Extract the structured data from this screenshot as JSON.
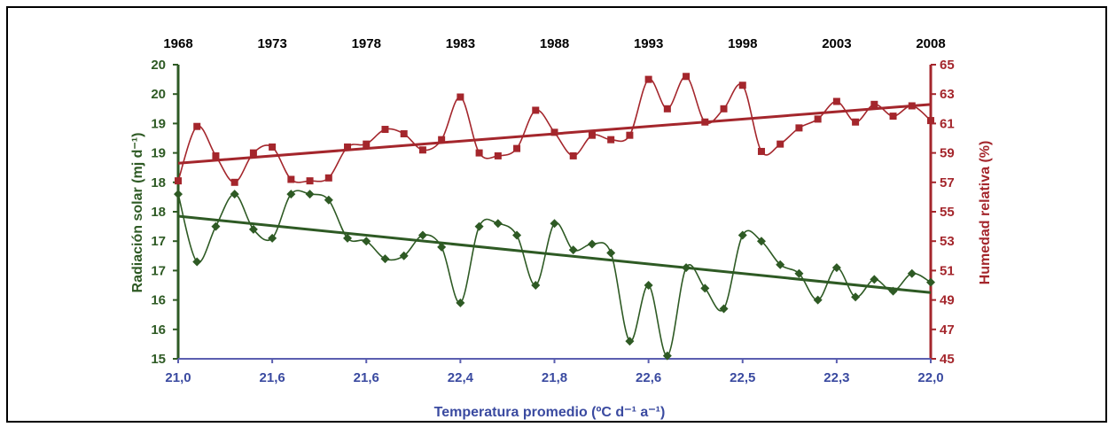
{
  "chart_data": {
    "type": "line",
    "top_x_ticks": [
      "1968",
      "1973",
      "1978",
      "1983",
      "1988",
      "1993",
      "1998",
      "2003",
      "2008"
    ],
    "bottom_x_ticks": [
      "21,0",
      "21,6",
      "21,6",
      "22,4",
      "21,8",
      "22,6",
      "22,5",
      "22,3",
      "22,0"
    ],
    "xlabel": "Temperatura promedio (ºC d⁻¹ a⁻¹)",
    "ylabel_left": "Radiación solar (mj d⁻¹)",
    "ylabel_right": "Humedad relativa (%)",
    "left_ticks": [
      "15",
      "16",
      "16",
      "17",
      "17",
      "18",
      "18",
      "19",
      "19",
      "20",
      "20"
    ],
    "right_ticks": [
      "45",
      "47",
      "49",
      "51",
      "53",
      "55",
      "57",
      "59",
      "61",
      "63",
      "65"
    ],
    "xlim": [
      1968,
      2008
    ],
    "ylim_left_index": [
      0,
      10
    ],
    "ylim_right": [
      45,
      65
    ],
    "series": [
      {
        "axis": "right",
        "color": "#a4262c",
        "marker": "square",
        "x": [
          1968,
          1969,
          1970,
          1971,
          1972,
          1973,
          1974,
          1975,
          1976,
          1977,
          1978,
          1979,
          1980,
          1981,
          1982,
          1983,
          1984,
          1985,
          1986,
          1987,
          1988,
          1989,
          1990,
          1991,
          1992,
          1993,
          1994,
          1995,
          1996,
          1997,
          1998,
          1999,
          2000,
          2001,
          2002,
          2003,
          2004,
          2005,
          2006,
          2007,
          2008
        ],
        "y": [
          57.1,
          60.8,
          58.8,
          57.0,
          59.0,
          59.4,
          57.2,
          57.1,
          57.3,
          59.4,
          59.6,
          60.6,
          60.3,
          59.2,
          59.9,
          62.8,
          59.0,
          58.8,
          59.3,
          61.9,
          60.4,
          58.8,
          60.2,
          59.9,
          60.2,
          64.0,
          62.0,
          64.2,
          61.1,
          62.0,
          63.6,
          59.1,
          59.6,
          60.7,
          61.3,
          62.5,
          61.1,
          62.3,
          61.5,
          62.2,
          61.2
        ],
        "trend": [
          58.3,
          62.3
        ]
      },
      {
        "axis": "left",
        "color": "#2e5a24",
        "marker": "diamond",
        "x": [
          1968,
          1969,
          1970,
          1971,
          1972,
          1973,
          1974,
          1975,
          1976,
          1977,
          1978,
          1979,
          1980,
          1981,
          1982,
          1983,
          1984,
          1985,
          1986,
          1987,
          1988,
          1989,
          1990,
          1991,
          1992,
          1993,
          1994,
          1995,
          1996,
          1997,
          1998,
          1999,
          2000,
          2001,
          2002,
          2003,
          2004,
          2005,
          2006,
          2007,
          2008
        ],
        "y_index": [
          5.6,
          3.3,
          4.5,
          5.6,
          4.4,
          4.1,
          5.6,
          5.6,
          5.4,
          4.1,
          4.0,
          3.4,
          3.5,
          4.2,
          3.8,
          1.9,
          4.5,
          4.6,
          4.2,
          2.5,
          4.6,
          3.7,
          3.9,
          3.6,
          0.6,
          2.5,
          0.1,
          3.1,
          2.4,
          1.7,
          4.2,
          4.0,
          3.2,
          2.9,
          2.0,
          3.1,
          2.1,
          2.7,
          2.3,
          2.9,
          2.6
        ],
        "trend_index": [
          4.85,
          2.25
        ]
      }
    ]
  }
}
